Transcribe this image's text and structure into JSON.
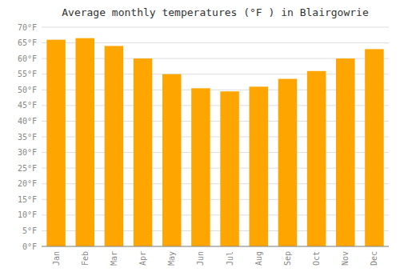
{
  "chart_data": {
    "type": "bar",
    "title": "Average monthly temperatures (°F ) in Blairgowrie",
    "categories": [
      "Jan",
      "Feb",
      "Mar",
      "Apr",
      "May",
      "Jun",
      "Jul",
      "Aug",
      "Sep",
      "Oct",
      "Nov",
      "Dec"
    ],
    "values": [
      66,
      66.5,
      64,
      60,
      55,
      50.5,
      49.5,
      51,
      53.5,
      56,
      60,
      63
    ],
    "color": "#FFA500",
    "ylim": [
      0,
      70
    ],
    "yticks": [
      {
        "value": 0,
        "label": "0°F"
      },
      {
        "value": 5,
        "label": "5°F"
      },
      {
        "value": 10,
        "label": "10°F"
      },
      {
        "value": 15,
        "label": "15°F"
      },
      {
        "value": 20,
        "label": "20°F"
      },
      {
        "value": 25,
        "label": "25°F"
      },
      {
        "value": 30,
        "label": "30°F"
      },
      {
        "value": 35,
        "label": "35°F"
      },
      {
        "value": 40,
        "label": "40°F"
      },
      {
        "value": 45,
        "label": "45°F"
      },
      {
        "value": 50,
        "label": "50°F"
      },
      {
        "value": 55,
        "label": "55°F"
      },
      {
        "value": 60,
        "label": "60°F"
      },
      {
        "value": 65,
        "label": "65°F"
      },
      {
        "value": 70,
        "label": "70°F"
      }
    ],
    "grid": true
  }
}
